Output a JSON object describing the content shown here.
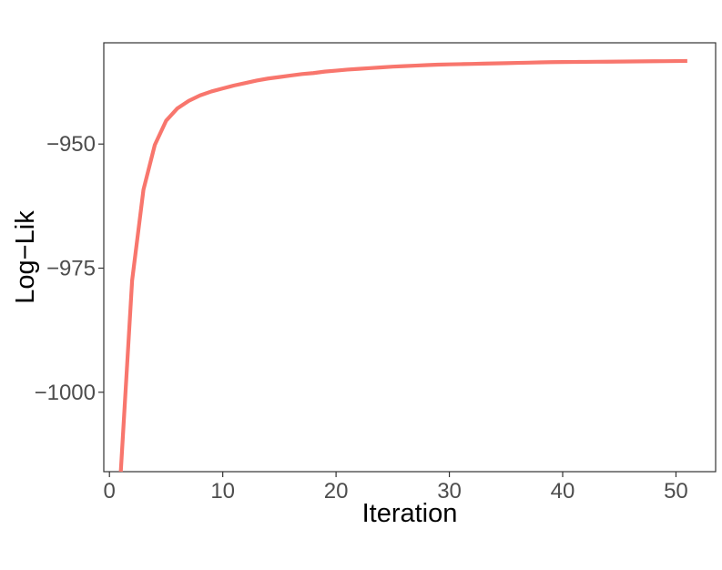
{
  "chart_data": {
    "type": "line",
    "title": "",
    "xlabel": "Iteration",
    "ylabel": "Log−Lik",
    "xlim": [
      -0.5,
      53.5
    ],
    "ylim": [
      -1016,
      -929.6
    ],
    "xticks": [
      0,
      10,
      20,
      30,
      40,
      50
    ],
    "yticks": [
      -1000,
      -975,
      -950
    ],
    "xtick_labels": [
      "0",
      "10",
      "20",
      "30",
      "40",
      "50"
    ],
    "ytick_labels": [
      "−1000",
      "−975",
      "−950"
    ],
    "grid": false,
    "legend": "none",
    "series": [
      {
        "color": "#F8766D",
        "x": [
          1,
          2,
          3,
          4,
          5,
          6,
          7,
          8,
          9,
          10,
          11,
          12,
          13,
          14,
          15,
          16,
          17,
          18,
          19,
          20,
          21,
          22,
          23,
          24,
          25,
          26,
          27,
          28,
          29,
          30,
          31,
          32,
          33,
          34,
          35,
          36,
          37,
          38,
          39,
          40,
          41,
          42,
          43,
          44,
          45,
          46,
          47,
          48,
          49,
          50,
          51
        ],
        "y": [
          -1016.0,
          -977.5,
          -959.2,
          -950.2,
          -945.3,
          -942.8,
          -941.3,
          -940.2,
          -939.4,
          -938.8,
          -938.2,
          -937.7,
          -937.2,
          -936.8,
          -936.5,
          -936.2,
          -935.9,
          -935.7,
          -935.4,
          -935.2,
          -935.0,
          -934.85,
          -934.7,
          -934.55,
          -934.4,
          -934.3,
          -934.2,
          -934.1,
          -934.0,
          -933.95,
          -933.9,
          -933.85,
          -933.8,
          -933.75,
          -933.7,
          -933.65,
          -933.6,
          -933.55,
          -933.5,
          -933.48,
          -933.46,
          -933.44,
          -933.42,
          -933.4,
          -933.38,
          -933.36,
          -933.34,
          -933.32,
          -933.3,
          -933.28,
          -933.26
        ]
      }
    ]
  }
}
